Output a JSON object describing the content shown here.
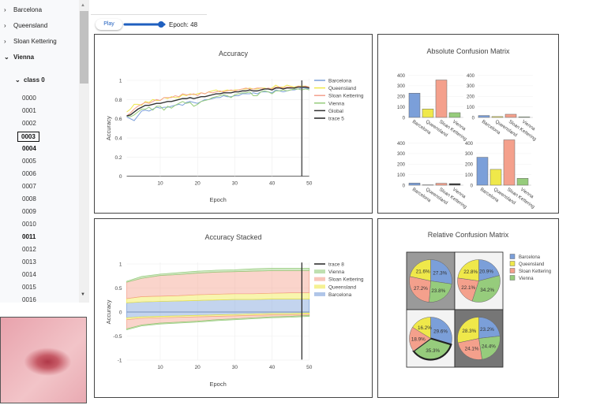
{
  "sidebar": {
    "sites": [
      {
        "label": "Barcelona",
        "expanded": false
      },
      {
        "label": "Queensland",
        "expanded": false
      },
      {
        "label": "Sloan Kettering",
        "expanded": false
      },
      {
        "label": "Vienna",
        "expanded": true
      }
    ],
    "class_node": "class 0",
    "items": [
      "0000",
      "0001",
      "0002",
      "0003",
      "0004",
      "0005",
      "0006",
      "0007",
      "0008",
      "0009",
      "0010",
      "0011",
      "0012",
      "0013",
      "0014",
      "0015",
      "0016"
    ],
    "selected_item": "0003",
    "bold_items": [
      "0003",
      "0004",
      "0011"
    ]
  },
  "controls": {
    "play_label": "Play",
    "epoch_label": "Epoch: 48",
    "epoch": 48,
    "epoch_max": 50
  },
  "colors": {
    "Barcelona": "#7b9fd9",
    "Queensland": "#efe84a",
    "Sloan Kettering": "#f4a08c",
    "Vienna": "#96cc7c",
    "Global": "#333333"
  },
  "chart_data": [
    {
      "type": "line",
      "title": "Accuracy",
      "xlabel": "Epoch",
      "ylabel": "Accuracy",
      "xlim": [
        1,
        50
      ],
      "ylim": [
        0,
        1
      ],
      "xticks": [
        10,
        20,
        30,
        40,
        50
      ],
      "yticks": [
        0,
        0.2,
        0.4,
        0.6,
        0.8,
        1
      ],
      "grid": true,
      "legend": "right",
      "x_start": 1,
      "series": [
        {
          "name": "Barcelona",
          "values": [
            0.62,
            0.6,
            0.58,
            0.63,
            0.68,
            0.69,
            0.68,
            0.7,
            0.72,
            0.71,
            0.72,
            0.72,
            0.73,
            0.74,
            0.75,
            0.74,
            0.77,
            0.78,
            0.77,
            0.76,
            0.78,
            0.8,
            0.8,
            0.81,
            0.82,
            0.82,
            0.84,
            0.83,
            0.83,
            0.84,
            0.84,
            0.86,
            0.86,
            0.86,
            0.87,
            0.86,
            0.88,
            0.88,
            0.88,
            0.87,
            0.9,
            0.89,
            0.88,
            0.89,
            0.9,
            0.9,
            0.91,
            0.92,
            0.92,
            0.91
          ]
        },
        {
          "name": "Queensland",
          "values": [
            0.67,
            0.7,
            0.75,
            0.75,
            0.74,
            0.78,
            0.77,
            0.8,
            0.79,
            0.79,
            0.82,
            0.81,
            0.83,
            0.82,
            0.82,
            0.85,
            0.84,
            0.86,
            0.85,
            0.86,
            0.87,
            0.86,
            0.88,
            0.89,
            0.9,
            0.88,
            0.89,
            0.9,
            0.89,
            0.9,
            0.9,
            0.91,
            0.91,
            0.92,
            0.91,
            0.91,
            0.92,
            0.92,
            0.91,
            0.92,
            0.95,
            0.93,
            0.93,
            0.95,
            0.94,
            0.93,
            0.94,
            0.94,
            0.94,
            0.93
          ]
        },
        {
          "name": "Sloan Kettering",
          "values": [
            0.63,
            0.66,
            0.7,
            0.73,
            0.75,
            0.77,
            0.76,
            0.78,
            0.8,
            0.79,
            0.82,
            0.82,
            0.82,
            0.84,
            0.83,
            0.86,
            0.85,
            0.85,
            0.86,
            0.84,
            0.87,
            0.86,
            0.88,
            0.87,
            0.88,
            0.89,
            0.88,
            0.89,
            0.9,
            0.89,
            0.9,
            0.91,
            0.92,
            0.91,
            0.91,
            0.92,
            0.92,
            0.91,
            0.92,
            0.91,
            0.93,
            0.93,
            0.92,
            0.93,
            0.93,
            0.92,
            0.94,
            0.93,
            0.94,
            0.93
          ]
        },
        {
          "name": "Vienna",
          "values": [
            0.63,
            0.62,
            0.64,
            0.67,
            0.7,
            0.7,
            0.72,
            0.69,
            0.73,
            0.73,
            0.69,
            0.73,
            0.71,
            0.74,
            0.76,
            0.78,
            0.76,
            0.77,
            0.73,
            0.75,
            0.78,
            0.79,
            0.8,
            0.82,
            0.83,
            0.84,
            0.85,
            0.84,
            0.82,
            0.85,
            0.86,
            0.87,
            0.87,
            0.88,
            0.84,
            0.84,
            0.88,
            0.89,
            0.88,
            0.86,
            0.89,
            0.89,
            0.9,
            0.89,
            0.9,
            0.91,
            0.91,
            0.9,
            0.91,
            0.9
          ]
        },
        {
          "name": "Global",
          "values": [
            0.63,
            0.64,
            0.67,
            0.7,
            0.72,
            0.74,
            0.74,
            0.75,
            0.76,
            0.76,
            0.77,
            0.78,
            0.78,
            0.79,
            0.8,
            0.81,
            0.81,
            0.82,
            0.81,
            0.82,
            0.83,
            0.83,
            0.84,
            0.85,
            0.86,
            0.86,
            0.87,
            0.87,
            0.87,
            0.88,
            0.88,
            0.89,
            0.89,
            0.9,
            0.89,
            0.89,
            0.9,
            0.91,
            0.91,
            0.9,
            0.92,
            0.92,
            0.91,
            0.92,
            0.92,
            0.92,
            0.93,
            0.93,
            0.93,
            0.92
          ]
        },
        {
          "name": "trace 5",
          "vertical_x": 48
        }
      ]
    },
    {
      "type": "area",
      "title": "Accuracy Stacked",
      "xlabel": "Epoch",
      "ylabel": "Accuracy",
      "xlim": [
        1,
        50
      ],
      "ylim": [
        -1,
        1
      ],
      "xticks": [
        10,
        20,
        30,
        40,
        50
      ],
      "yticks": [
        -1,
        -0.5,
        0,
        0.5,
        1
      ],
      "grid": true,
      "legend": "right",
      "x": [
        1,
        5,
        10,
        15,
        20,
        25,
        30,
        35,
        40,
        45,
        50
      ],
      "series": [
        {
          "name": "Barcelona",
          "positive": [
            0.19,
            0.21,
            0.22,
            0.23,
            0.24,
            0.25,
            0.26,
            0.26,
            0.27,
            0.27,
            0.27
          ],
          "negative": [
            0.12,
            0.1,
            0.09,
            0.08,
            0.07,
            0.06,
            0.05,
            0.04,
            0.03,
            0.03,
            0.02
          ]
        },
        {
          "name": "Queensland",
          "positive": [
            0.09,
            0.11,
            0.11,
            0.11,
            0.12,
            0.12,
            0.12,
            0.12,
            0.12,
            0.13,
            0.13
          ],
          "negative": [
            0.04,
            0.03,
            0.03,
            0.03,
            0.03,
            0.03,
            0.03,
            0.03,
            0.03,
            0.03,
            0.03
          ]
        },
        {
          "name": "Sloan Kettering",
          "positive": [
            0.34,
            0.38,
            0.43,
            0.44,
            0.45,
            0.46,
            0.46,
            0.47,
            0.47,
            0.46,
            0.46
          ],
          "negative": [
            0.19,
            0.14,
            0.11,
            0.1,
            0.09,
            0.07,
            0.06,
            0.05,
            0.04,
            0.03,
            0.02
          ]
        },
        {
          "name": "Vienna",
          "positive": [
            0.02,
            0.04,
            0.03,
            0.04,
            0.04,
            0.04,
            0.04,
            0.05,
            0.05,
            0.05,
            0.05
          ],
          "negative": [
            0.02,
            0.02,
            0.02,
            0.02,
            0.02,
            0.02,
            0.02,
            0.02,
            0.02,
            0.02,
            0.02
          ]
        },
        {
          "name": "trace 8",
          "vertical_x": 48
        }
      ]
    },
    {
      "type": "bar",
      "title": "Absolute Confusion Matrix",
      "categories": [
        "Barcelona",
        "Queensland",
        "Sloan Kettering",
        "Vienna"
      ],
      "ylim": [
        0,
        400
      ],
      "yticks": [
        0,
        100,
        200,
        300,
        400
      ],
      "subplots": [
        {
          "values": [
            230,
            80,
            355,
            45
          ]
        },
        {
          "values": [
            18,
            8,
            30,
            5
          ]
        },
        {
          "values": [
            20,
            3,
            18,
            15
          ],
          "highlight": "Vienna"
        },
        {
          "values": [
            265,
            150,
            430,
            65
          ]
        }
      ]
    },
    {
      "type": "pie",
      "title": "Relative Confusion Matrix",
      "legend": "right",
      "labels": [
        "Barcelona",
        "Vienna",
        "Sloan Kettering",
        "Queensland"
      ],
      "legend_order": [
        "Barcelona",
        "Queensland",
        "Sloan Kettering",
        "Vienna"
      ],
      "subplots": [
        {
          "values": [
            27.3,
            23.8,
            27.2,
            21.6
          ],
          "background": "#9a9a9a"
        },
        {
          "values": [
            20.9,
            34.2,
            22.1,
            22.8
          ],
          "background": "#f3f3f3"
        },
        {
          "values": [
            29.6,
            35.3,
            18.9,
            16.2
          ],
          "background": "#f3f3f3",
          "highlight": "Vienna"
        },
        {
          "values": [
            23.2,
            24.4,
            24.1,
            28.3
          ],
          "background": "#767676"
        }
      ]
    }
  ]
}
